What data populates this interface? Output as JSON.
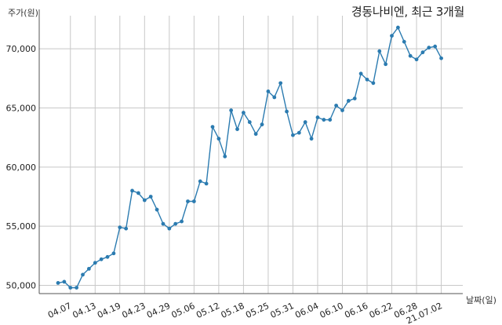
{
  "chart_data": {
    "type": "line",
    "title": "경동나비엔, 최근 3개월",
    "ylabel": "주가(원)",
    "xlabel": "날짜(일)",
    "ylim": [
      49300,
      72800
    ],
    "yticks": [
      50000,
      55000,
      60000,
      65000,
      70000
    ],
    "ytick_labels": [
      "50,000",
      "55,000",
      "60,000",
      "65,000",
      "70,000"
    ],
    "grid": true,
    "xtick_labels": [
      "04.07",
      "04.13",
      "04.19",
      "04.23",
      "04.29",
      "05.06",
      "05.12",
      "05.18",
      "05.25",
      "05.31",
      "06.04",
      "06.10",
      "06.16",
      "06.22",
      "06.28",
      "21.07.02"
    ],
    "xtick_indices": [
      2,
      6,
      10,
      14,
      18,
      22,
      26,
      30,
      34,
      38,
      42,
      46,
      50,
      54,
      58,
      62
    ],
    "series": [
      {
        "values": [
          50200,
          50300,
          49800,
          49800,
          50900,
          51400,
          51900,
          52200,
          52400,
          52700,
          54900,
          54800,
          58000,
          57800,
          57200,
          57500,
          56400,
          55200,
          54800,
          55200,
          55400,
          57100,
          57100,
          58800,
          58600,
          63400,
          62400,
          60900,
          64800,
          63200,
          64600,
          63800,
          62800,
          63600,
          66400,
          65900,
          67100,
          64700,
          62700,
          62900,
          63800,
          62400,
          64200,
          64000,
          64000,
          65200,
          64800,
          65600,
          65800,
          67900,
          67400,
          67100,
          69800,
          68700,
          71100,
          71800,
          70600,
          69400,
          69100,
          69700,
          70100,
          70200,
          69200
        ]
      }
    ]
  }
}
